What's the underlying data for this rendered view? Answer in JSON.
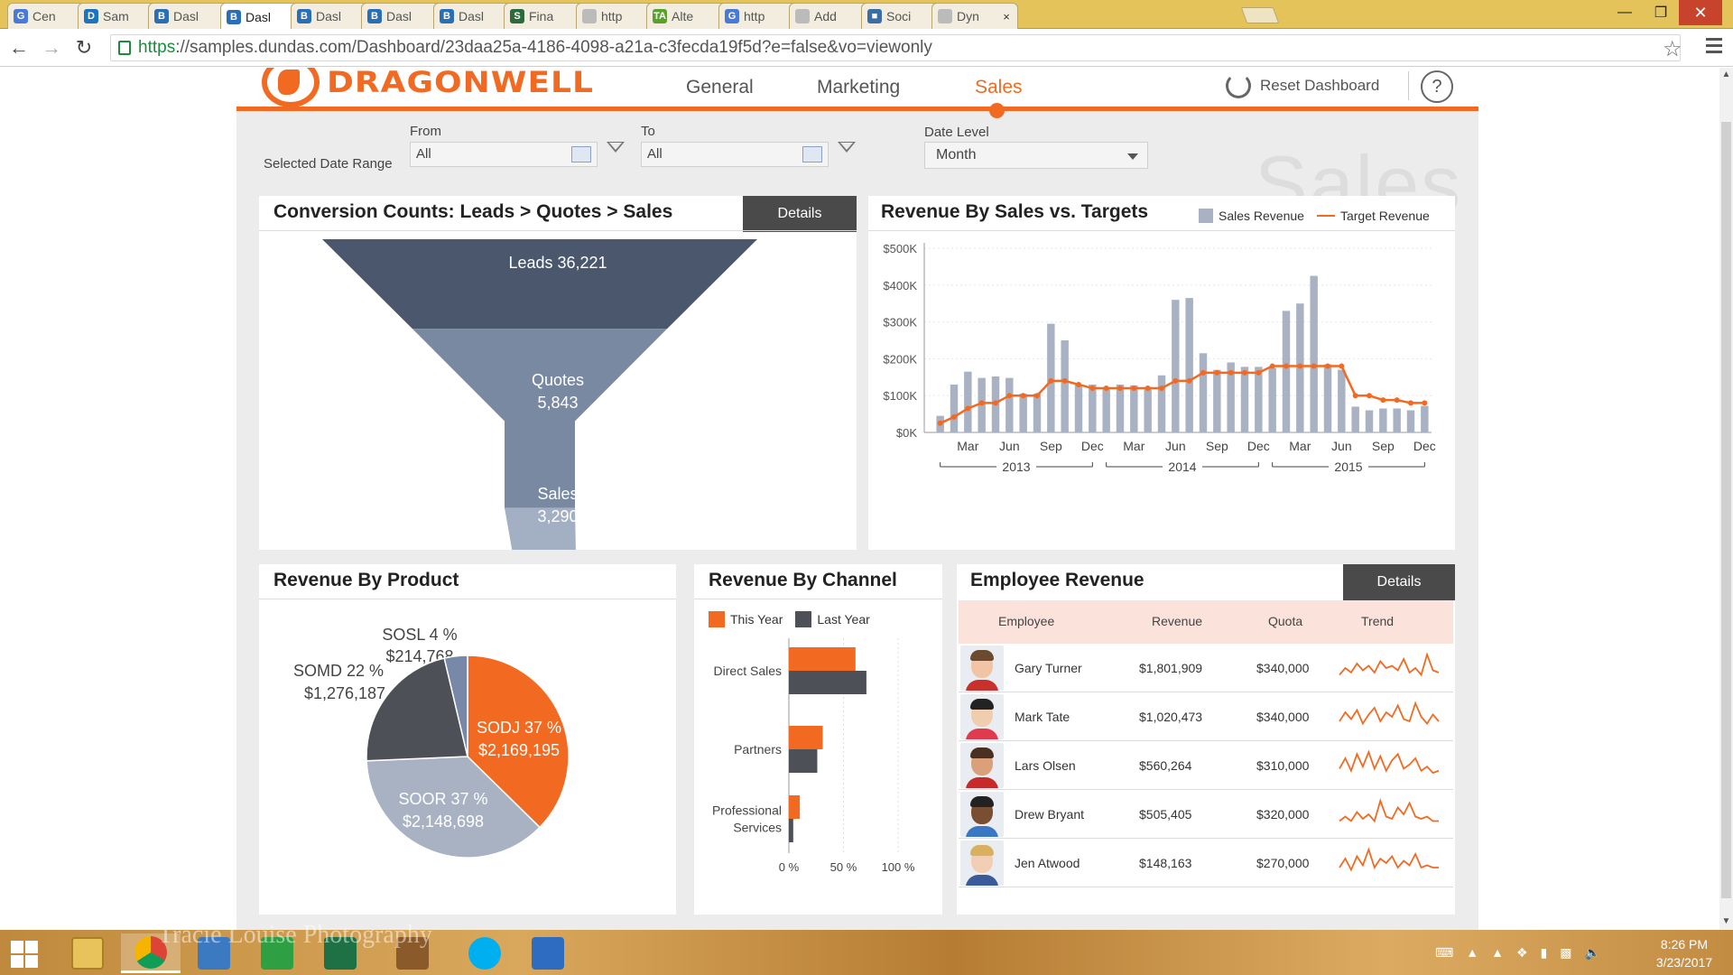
{
  "browser": {
    "tabs": [
      {
        "label": "Cen",
        "icon": "G",
        "color": "#4a7ad6"
      },
      {
        "label": "Sam",
        "icon": "D",
        "color": "#1e73be"
      },
      {
        "label": "Dasl",
        "icon": "B",
        "color": "#2a6fb5"
      },
      {
        "label": "Dasl",
        "icon": "B",
        "color": "#2a6fb5"
      },
      {
        "label": "Dasl",
        "icon": "B",
        "color": "#2a6fb5"
      },
      {
        "label": "Dasl",
        "icon": "B",
        "color": "#2a6fb5"
      },
      {
        "label": "Dasl",
        "icon": "B",
        "color": "#2a6fb5"
      },
      {
        "label": "Fina",
        "icon": "S",
        "color": "#2d6b3c"
      },
      {
        "label": "http",
        "icon": "",
        "color": "#bbbbbb"
      },
      {
        "label": "Alte",
        "icon": "TA",
        "color": "#5aa02c"
      },
      {
        "label": "http",
        "icon": "G",
        "color": "#4a7ad6"
      },
      {
        "label": "Add",
        "icon": "",
        "color": "#bbbbbb"
      },
      {
        "label": "Soci",
        "icon": "■",
        "color": "#3b6ea5"
      },
      {
        "label": "Dyn",
        "icon": "",
        "color": "#bbbbbb"
      }
    ],
    "active_tab": 3,
    "url_secure": "https",
    "url_rest": "://samples.dundas.com/Dashboard/23daa25a-4186-4098-a21a-c3fecda19f5d?e=false&vo=viewonly"
  },
  "header": {
    "logo_text": "DRAGONWELL",
    "nav": [
      "General",
      "Marketing",
      "Sales"
    ],
    "active_nav": "Sales",
    "reset_label": "Reset Dashboard",
    "help_label": "?"
  },
  "filters": {
    "range_label": "Selected Date Range",
    "from_label": "From",
    "from_value": "All",
    "to_label": "To",
    "to_value": "All",
    "level_label": "Date Level",
    "level_value": "Month",
    "watermark": "Sales"
  },
  "conversion": {
    "title": "Conversion Counts: Leads > Quotes > Sales",
    "details_label": "Details",
    "stages": [
      {
        "name": "Leads",
        "value": "36,221",
        "color": "#4a576c"
      },
      {
        "name": "Quotes",
        "value": "5,843",
        "color": "#7a89a2"
      },
      {
        "name": "Sales",
        "value": "3,290",
        "color": "#a3afc2"
      }
    ]
  },
  "revenue_targets": {
    "title": "Revenue By Sales vs. Targets",
    "legend": [
      "Sales Revenue",
      "Target Revenue"
    ]
  },
  "product": {
    "title": "Revenue By Product",
    "labels": [
      {
        "name": "SODJ 37 %",
        "value": "$2,169,195"
      },
      {
        "name": "SOOR 37 %",
        "value": "$2,148,698"
      },
      {
        "name": "SOMD 22 %",
        "value": "$1,276,187"
      },
      {
        "name": "SOSL 4 %",
        "value": "$214,768"
      }
    ]
  },
  "channel": {
    "title": "Revenue By Channel",
    "legend": [
      "This Year",
      "Last Year"
    ],
    "categories": [
      "Direct Sales",
      "Partners",
      "Professional Services"
    ],
    "category_lines": [
      [
        "Direct Sales"
      ],
      [
        "Partners"
      ],
      [
        "Professional",
        "Services"
      ]
    ],
    "x_ticks": [
      "0 %",
      "50 %",
      "100 %"
    ]
  },
  "employees": {
    "title": "Employee Revenue",
    "details_label": "Details",
    "columns": [
      "Employee",
      "Revenue",
      "Quota",
      "Trend"
    ],
    "rows": [
      {
        "name": "Gary Turner",
        "revenue": "$1,801,909",
        "quota": "$340,000",
        "shirt": "#c8302b",
        "hair": "#6b4a30",
        "skin": "#f0c4a4",
        "trend": [
          3,
          6,
          4,
          8,
          5,
          7,
          4,
          9,
          6,
          7,
          5,
          10,
          4,
          6,
          3,
          12,
          5,
          4
        ]
      },
      {
        "name": "Mark Tate",
        "revenue": "$1,020,473",
        "quota": "$340,000",
        "shirt": "#e03a4e",
        "hair": "#222222",
        "skin": "#f1cdb0",
        "trend": [
          4,
          8,
          5,
          9,
          3,
          7,
          10,
          4,
          8,
          6,
          11,
          5,
          4,
          12,
          6,
          3,
          7,
          4
        ]
      },
      {
        "name": "Lars Olsen",
        "revenue": "$560,264",
        "quota": "$310,000",
        "shirt": "#c62a2a",
        "hair": "#4a3020",
        "skin": "#d9a07a",
        "trend": [
          5,
          10,
          4,
          12,
          6,
          13,
          5,
          11,
          4,
          9,
          12,
          5,
          7,
          10,
          4,
          6,
          3,
          4
        ]
      },
      {
        "name": "Drew Bryant",
        "revenue": "$505,405",
        "quota": "$320,000",
        "shirt": "#3a78c4",
        "hair": "#222222",
        "skin": "#7a4e32",
        "trend": [
          3,
          5,
          3,
          7,
          4,
          6,
          3,
          12,
          5,
          4,
          9,
          6,
          11,
          5,
          4,
          5,
          3,
          3
        ]
      },
      {
        "name": "Jen Atwood",
        "revenue": "$148,163",
        "quota": "$270,000",
        "shirt": "#3a5a9a",
        "hair": "#d8b060",
        "skin": "#f2cfb4",
        "trend": [
          4,
          8,
          3,
          9,
          5,
          12,
          4,
          8,
          6,
          9,
          4,
          7,
          5,
          10,
          4,
          5,
          4,
          4
        ]
      }
    ]
  },
  "taskbar": {
    "photo_watermark": "Tracie Louise Photography",
    "time": "8:26 PM",
    "date": "3/23/2017"
  },
  "chart_data": [
    {
      "type": "bar",
      "title": "Revenue By Sales vs. Targets",
      "ylabel": "",
      "ylim": [
        0,
        500000
      ],
      "y_ticks": [
        "$0K",
        "$100K",
        "$200K",
        "$300K",
        "$400K",
        "$500K"
      ],
      "x_ticks": [
        "Mar",
        "Jun",
        "Sep",
        "Dec",
        "Mar",
        "Jun",
        "Sep",
        "Dec",
        "Mar",
        "Jun",
        "Sep",
        "Dec"
      ],
      "year_labels": [
        "2013",
        "2014",
        "2015"
      ],
      "categories": [
        "2013-01",
        "2013-02",
        "2013-03",
        "2013-04",
        "2013-05",
        "2013-06",
        "2013-07",
        "2013-08",
        "2013-09",
        "2013-10",
        "2013-11",
        "2013-12",
        "2014-01",
        "2014-02",
        "2014-03",
        "2014-04",
        "2014-05",
        "2014-06",
        "2014-07",
        "2014-08",
        "2014-09",
        "2014-10",
        "2014-11",
        "2014-12",
        "2015-01",
        "2015-02",
        "2015-03",
        "2015-04",
        "2015-05",
        "2015-06",
        "2015-07",
        "2015-08",
        "2015-09",
        "2015-10",
        "2015-11",
        "2015-12"
      ],
      "series": [
        {
          "name": "Sales Revenue",
          "kind": "bar",
          "color": "#a8b2c3",
          "values": [
            45000,
            130000,
            165000,
            148000,
            152000,
            148000,
            105000,
            105000,
            295000,
            250000,
            130000,
            130000,
            120000,
            130000,
            128000,
            120000,
            155000,
            360000,
            365000,
            215000,
            170000,
            190000,
            178000,
            178000,
            175000,
            330000,
            350000,
            425000,
            185000,
            170000,
            70000,
            60000,
            65000,
            65000,
            60000,
            72000
          ]
        },
        {
          "name": "Target Revenue",
          "kind": "line",
          "color": "#f26a22",
          "values": [
            25000,
            42000,
            65000,
            80000,
            80000,
            100000,
            100000,
            100000,
            140000,
            140000,
            130000,
            120000,
            120000,
            120000,
            120000,
            120000,
            120000,
            140000,
            140000,
            162000,
            162000,
            162000,
            162000,
            162000,
            180000,
            180000,
            180000,
            180000,
            180000,
            180000,
            100000,
            100000,
            88000,
            88000,
            80000,
            80000
          ]
        }
      ]
    },
    {
      "type": "pie",
      "title": "Revenue By Product",
      "categories": [
        "SODJ",
        "SOOR",
        "SOMD",
        "SOSL"
      ],
      "values": [
        2169195,
        2148698,
        1276187,
        214768
      ],
      "colors": [
        "#f26a22",
        "#a8b2c3",
        "#4e5057",
        "#7788a8"
      ]
    },
    {
      "type": "bar",
      "title": "Revenue By Channel",
      "categories": [
        "Direct Sales",
        "Partners",
        "Professional Services"
      ],
      "xlim": [
        0,
        100
      ],
      "series": [
        {
          "name": "This Year",
          "color": "#f26a22",
          "values": [
            61,
            31,
            10
          ]
        },
        {
          "name": "Last Year",
          "color": "#4e5057",
          "values": [
            71,
            26,
            4
          ]
        }
      ]
    },
    {
      "type": "funnel",
      "title": "Conversion Counts: Leads > Quotes > Sales",
      "categories": [
        "Leads",
        "Quotes",
        "Sales"
      ],
      "values": [
        36221,
        5843,
        3290
      ]
    }
  ]
}
